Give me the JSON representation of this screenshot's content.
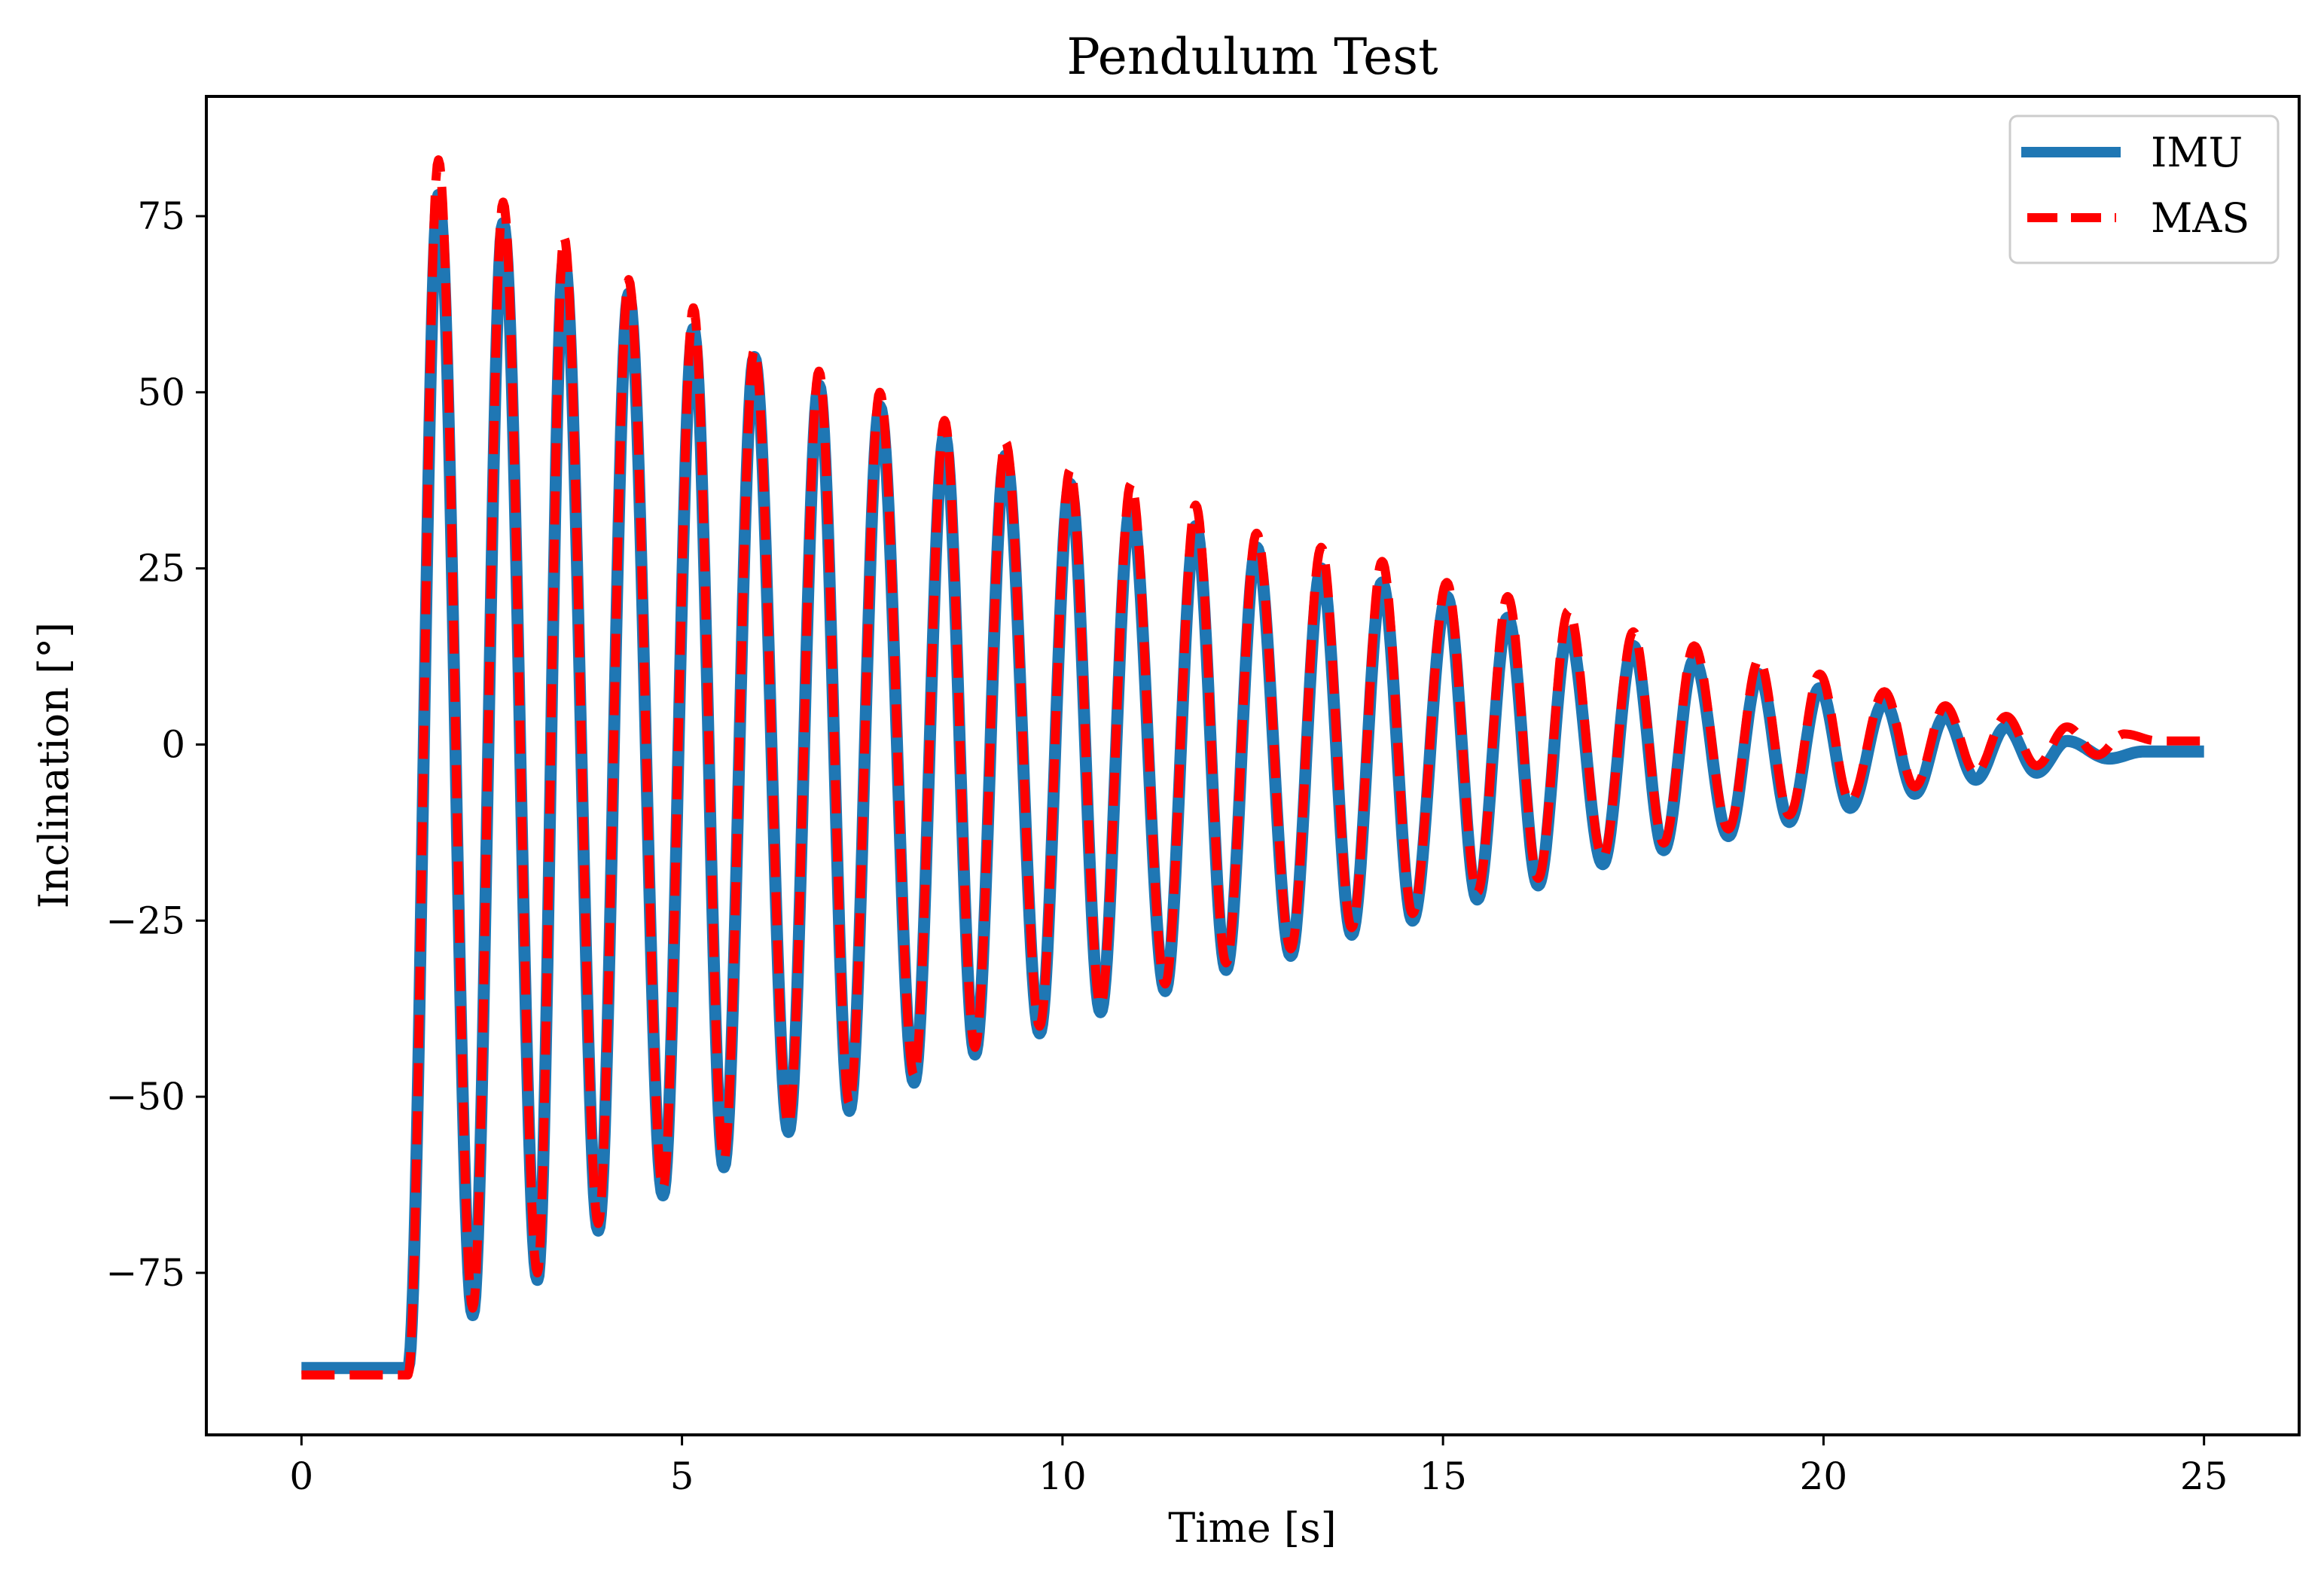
{
  "chart_data": {
    "type": "line",
    "title": "Pendulum Test",
    "xlabel": "Time [s]",
    "ylabel": "Inclination [°]",
    "xlim": [
      -1.25,
      26.25
    ],
    "ylim": [
      -98,
      92
    ],
    "xticks": [
      0,
      5,
      10,
      15,
      20,
      25
    ],
    "yticks": [
      -75,
      -50,
      -25,
      0,
      25,
      50,
      75
    ],
    "xtick_labels": [
      "0",
      "5",
      "10",
      "15",
      "20",
      "25"
    ],
    "ytick_labels": [
      "−75",
      "−50",
      "−25",
      "0",
      "25",
      "50",
      "75"
    ],
    "grid": false,
    "legend_position": "upper right",
    "series": [
      {
        "name": "IMU",
        "color": "#1f77b4",
        "style": "solid",
        "initial_value": -88.5,
        "release_time": 1.4,
        "final_value": -1.0,
        "end_time": 25.0,
        "extrema": [
          [
            1.8,
            78
          ],
          [
            2.25,
            -81
          ],
          [
            2.65,
            74
          ],
          [
            3.1,
            -76
          ],
          [
            3.45,
            69
          ],
          [
            3.9,
            -69
          ],
          [
            4.3,
            64
          ],
          [
            4.75,
            -64
          ],
          [
            5.15,
            59
          ],
          [
            5.55,
            -60
          ],
          [
            5.95,
            55
          ],
          [
            6.4,
            -55
          ],
          [
            6.8,
            51
          ],
          [
            7.2,
            -52
          ],
          [
            7.6,
            48
          ],
          [
            8.05,
            -48
          ],
          [
            8.45,
            44
          ],
          [
            8.85,
            -44
          ],
          [
            9.25,
            41
          ],
          [
            9.7,
            -41
          ],
          [
            10.1,
            37
          ],
          [
            10.5,
            -38
          ],
          [
            10.9,
            34
          ],
          [
            11.35,
            -35
          ],
          [
            11.75,
            31
          ],
          [
            12.15,
            -32
          ],
          [
            12.55,
            28
          ],
          [
            13.0,
            -30
          ],
          [
            13.4,
            25
          ],
          [
            13.8,
            -27
          ],
          [
            14.2,
            23
          ],
          [
            14.6,
            -25
          ],
          [
            15.05,
            21
          ],
          [
            15.45,
            -22
          ],
          [
            15.85,
            18
          ],
          [
            16.25,
            -20
          ],
          [
            16.65,
            16
          ],
          [
            17.1,
            -17
          ],
          [
            17.5,
            14
          ],
          [
            17.9,
            -15
          ],
          [
            18.3,
            12
          ],
          [
            18.75,
            -13
          ],
          [
            19.15,
            10
          ],
          [
            19.55,
            -11
          ],
          [
            19.95,
            8
          ],
          [
            20.35,
            -9
          ],
          [
            20.8,
            6
          ],
          [
            21.2,
            -7
          ],
          [
            21.6,
            4
          ],
          [
            22.0,
            -5
          ],
          [
            22.4,
            2.5
          ],
          [
            22.8,
            -4
          ],
          [
            23.2,
            0.5
          ],
          [
            23.75,
            -2
          ]
        ]
      },
      {
        "name": "MAS",
        "color": "#ff0000",
        "style": "dashed",
        "initial_value": -89.5,
        "release_time": 1.4,
        "final_value": 0.5,
        "end_time": 25.0,
        "extrema": [
          [
            1.8,
            83
          ],
          [
            2.25,
            -80
          ],
          [
            2.65,
            77
          ],
          [
            3.1,
            -75
          ],
          [
            3.45,
            72
          ],
          [
            3.9,
            -68
          ],
          [
            4.3,
            66
          ],
          [
            4.75,
            -63
          ],
          [
            5.15,
            62
          ],
          [
            5.55,
            -59
          ],
          [
            5.95,
            56
          ],
          [
            6.4,
            -54
          ],
          [
            6.8,
            53
          ],
          [
            7.2,
            -51
          ],
          [
            7.6,
            50
          ],
          [
            8.05,
            -47
          ],
          [
            8.45,
            46
          ],
          [
            8.85,
            -43
          ],
          [
            9.25,
            43
          ],
          [
            9.7,
            -40
          ],
          [
            10.1,
            39
          ],
          [
            10.5,
            -37
          ],
          [
            10.9,
            37
          ],
          [
            11.35,
            -34
          ],
          [
            11.75,
            34
          ],
          [
            12.15,
            -31
          ],
          [
            12.55,
            30
          ],
          [
            13.0,
            -29
          ],
          [
            13.4,
            28
          ],
          [
            13.8,
            -26
          ],
          [
            14.2,
            26
          ],
          [
            14.6,
            -24
          ],
          [
            15.05,
            23
          ],
          [
            15.45,
            -21
          ],
          [
            15.85,
            21
          ],
          [
            16.25,
            -19
          ],
          [
            16.65,
            19
          ],
          [
            17.1,
            -16
          ],
          [
            17.5,
            16
          ],
          [
            17.9,
            -14
          ],
          [
            18.3,
            14
          ],
          [
            18.75,
            -12
          ],
          [
            19.15,
            12
          ],
          [
            19.55,
            -10
          ],
          [
            19.95,
            10
          ],
          [
            20.35,
            -8
          ],
          [
            20.8,
            7.5
          ],
          [
            21.2,
            -6
          ],
          [
            21.6,
            5.5
          ],
          [
            22.0,
            -4
          ],
          [
            22.4,
            4
          ],
          [
            22.8,
            -3
          ],
          [
            23.2,
            2.5
          ],
          [
            23.6,
            -1.5
          ],
          [
            23.95,
            1.5
          ]
        ]
      }
    ]
  },
  "legend": {
    "items": [
      {
        "label": "IMU",
        "color": "#1f77b4",
        "style": "solid"
      },
      {
        "label": "MAS",
        "color": "#ff0000",
        "style": "dashed"
      }
    ]
  }
}
